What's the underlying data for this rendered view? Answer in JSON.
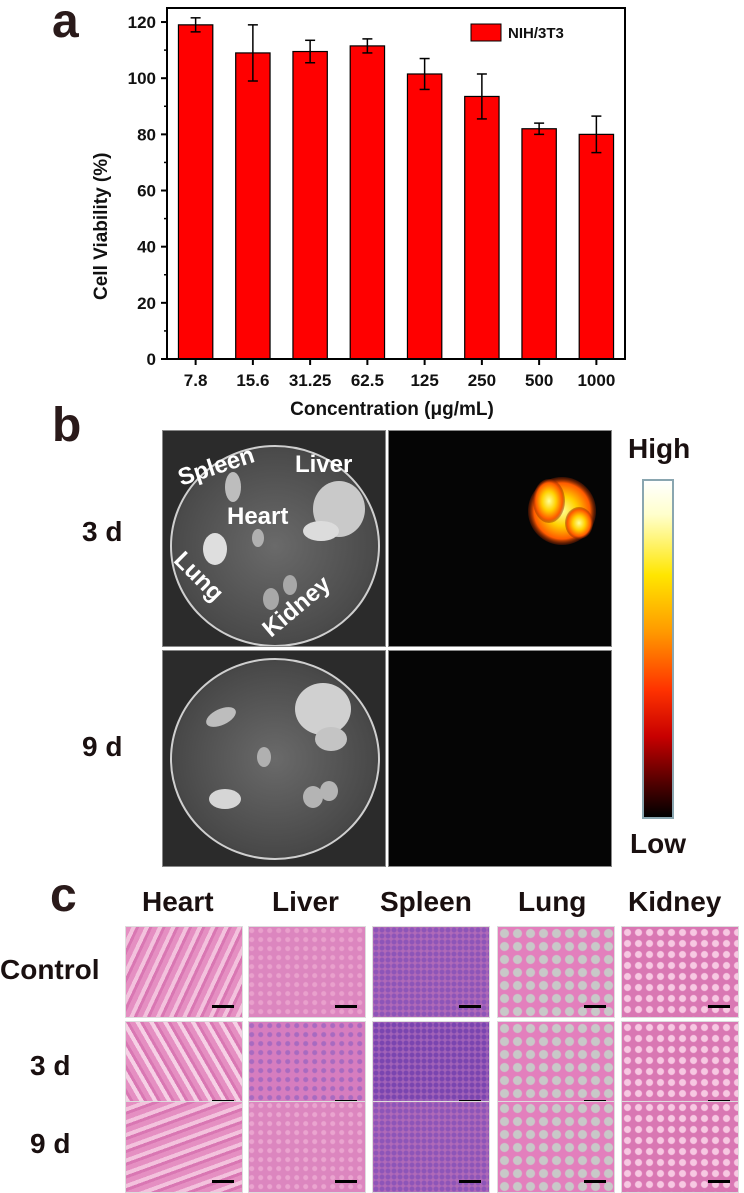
{
  "panels": {
    "a": "a",
    "b": "b",
    "c": "c"
  },
  "chart_data": {
    "type": "bar",
    "title": "",
    "xlabel": "Concentration (μg/mL)",
    "ylabel": "Cell Viability (%)",
    "ylim": [
      0,
      125
    ],
    "yticks": [
      "0",
      "20",
      "40",
      "60",
      "80",
      "100",
      "120"
    ],
    "categories": [
      "7.8",
      "15.6",
      "31.25",
      "62.5",
      "125",
      "250",
      "500",
      "1000"
    ],
    "series": [
      {
        "name": "NIH/3T3",
        "values": [
          119,
          109,
          109.5,
          111.5,
          101.5,
          93.5,
          82,
          80
        ],
        "errors": [
          2.5,
          10,
          4,
          2.5,
          5.5,
          8,
          2,
          6.5
        ]
      }
    ],
    "legend_position": "top-right",
    "bar_color": "#ff0000"
  },
  "panel_b": {
    "rows": [
      "3 d",
      "9 d"
    ],
    "organ_labels": {
      "spleen": "Spleen",
      "liver": "Liver",
      "heart": "Heart",
      "lung": "Lung",
      "kidney": "Kidney"
    },
    "colorbar": {
      "high": "High",
      "low": "Low"
    }
  },
  "panel_c": {
    "columns": [
      "Heart",
      "Liver",
      "Spleen",
      "Lung",
      "Kidney"
    ],
    "rows": [
      "Control",
      "3 d",
      "9 d"
    ]
  }
}
